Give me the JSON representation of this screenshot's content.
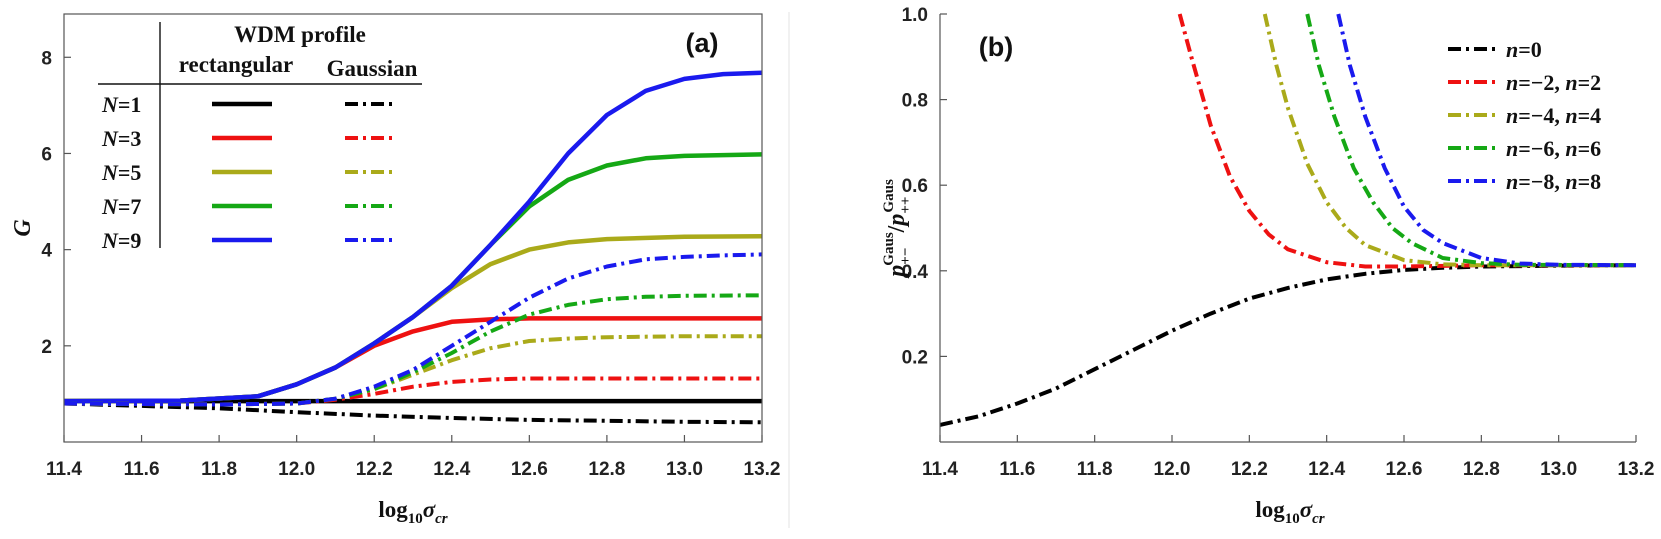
{
  "chart_data": [
    {
      "id": "a",
      "type": "line",
      "panel_label": "(a)",
      "title": "",
      "xlabel_main": "log",
      "xlabel_sub": "10",
      "xlabel_sym": "σ",
      "xlabel_sym_sub": "cr",
      "ylabel": "G",
      "xlim": [
        11.4,
        13.2
      ],
      "ylim": [
        0.0,
        8.9
      ],
      "xticks": [
        11.4,
        11.6,
        11.8,
        12.0,
        12.2,
        12.4,
        12.6,
        12.8,
        13.0,
        13.2
      ],
      "xtick_labels": [
        "11.4",
        "11.6",
        "11.8",
        "12.0",
        "12.2",
        "12.4",
        "12.6",
        "12.8",
        "13.0",
        "13.2"
      ],
      "yticks": [
        2,
        4,
        6,
        8
      ],
      "ytick_labels": [
        "2",
        "4",
        "6",
        "8"
      ],
      "legend": {
        "header": "WDM profile",
        "col1": "rectangular",
        "col2": "Gaussian",
        "rows": [
          {
            "N": "1",
            "color": "#000000"
          },
          {
            "N": "3",
            "color": "#ee1111"
          },
          {
            "N": "5",
            "color": "#aaaa1a"
          },
          {
            "N": "7",
            "color": "#15a815"
          },
          {
            "N": "9",
            "color": "#1a1aee"
          }
        ]
      },
      "series": [
        {
          "name": "N=1 rectangular",
          "color": "#000000",
          "dash": "solid",
          "x": [
            11.4,
            13.2
          ],
          "y": [
            0.85,
            0.85
          ]
        },
        {
          "name": "N=3 rectangular",
          "color": "#ee1111",
          "dash": "solid",
          "x": [
            11.4,
            11.7,
            11.9,
            12.0,
            12.1,
            12.2,
            12.3,
            12.4,
            12.5,
            12.6,
            12.7,
            13.2
          ],
          "y": [
            0.85,
            0.86,
            0.95,
            1.2,
            1.55,
            2.0,
            2.3,
            2.5,
            2.55,
            2.57,
            2.57,
            2.57
          ]
        },
        {
          "name": "N=5 rectangular",
          "color": "#aaaa1a",
          "dash": "solid",
          "x": [
            11.4,
            11.7,
            11.9,
            12.0,
            12.1,
            12.2,
            12.3,
            12.4,
            12.5,
            12.6,
            12.7,
            12.8,
            13.0,
            13.2
          ],
          "y": [
            0.85,
            0.86,
            0.95,
            1.2,
            1.55,
            2.05,
            2.6,
            3.2,
            3.7,
            4.0,
            4.15,
            4.22,
            4.27,
            4.28
          ]
        },
        {
          "name": "N=7 rectangular",
          "color": "#15a815",
          "dash": "solid",
          "x": [
            11.4,
            11.7,
            11.9,
            12.0,
            12.1,
            12.2,
            12.3,
            12.4,
            12.5,
            12.6,
            12.7,
            12.8,
            12.9,
            13.0,
            13.2
          ],
          "y": [
            0.85,
            0.86,
            0.95,
            1.2,
            1.55,
            2.05,
            2.6,
            3.25,
            4.1,
            4.9,
            5.45,
            5.75,
            5.9,
            5.95,
            5.98
          ]
        },
        {
          "name": "N=9 rectangular",
          "color": "#1a1aee",
          "dash": "solid",
          "x": [
            11.4,
            11.7,
            11.9,
            12.0,
            12.1,
            12.2,
            12.3,
            12.4,
            12.5,
            12.6,
            12.7,
            12.8,
            12.9,
            13.0,
            13.1,
            13.2
          ],
          "y": [
            0.85,
            0.86,
            0.95,
            1.2,
            1.55,
            2.05,
            2.6,
            3.25,
            4.1,
            5.0,
            6.0,
            6.8,
            7.3,
            7.55,
            7.65,
            7.68
          ]
        },
        {
          "name": "N=1 Gaussian",
          "color": "#000000",
          "dash": "dashdot",
          "x": [
            11.4,
            11.8,
            12.0,
            12.2,
            12.4,
            12.6,
            12.8,
            13.0,
            13.2
          ],
          "y": [
            0.8,
            0.7,
            0.62,
            0.55,
            0.5,
            0.46,
            0.44,
            0.42,
            0.41
          ]
        },
        {
          "name": "N=3 Gaussian",
          "color": "#ee1111",
          "dash": "dashdot",
          "x": [
            11.4,
            11.8,
            12.0,
            12.1,
            12.2,
            12.3,
            12.4,
            12.5,
            12.6,
            12.8,
            13.2
          ],
          "y": [
            0.8,
            0.78,
            0.8,
            0.88,
            1.0,
            1.15,
            1.25,
            1.3,
            1.32,
            1.32,
            1.32
          ]
        },
        {
          "name": "N=5 Gaussian",
          "color": "#aaaa1a",
          "dash": "dashdot",
          "x": [
            11.4,
            11.8,
            12.0,
            12.1,
            12.2,
            12.3,
            12.4,
            12.5,
            12.6,
            12.7,
            12.8,
            13.0,
            13.2
          ],
          "y": [
            0.8,
            0.78,
            0.8,
            0.9,
            1.1,
            1.4,
            1.7,
            1.95,
            2.1,
            2.15,
            2.18,
            2.2,
            2.2
          ]
        },
        {
          "name": "N=7 Gaussian",
          "color": "#15a815",
          "dash": "dashdot",
          "x": [
            11.4,
            11.8,
            12.0,
            12.1,
            12.2,
            12.3,
            12.4,
            12.5,
            12.6,
            12.7,
            12.8,
            12.9,
            13.0,
            13.2
          ],
          "y": [
            0.8,
            0.78,
            0.8,
            0.9,
            1.1,
            1.45,
            1.85,
            2.3,
            2.65,
            2.85,
            2.97,
            3.02,
            3.04,
            3.05
          ]
        },
        {
          "name": "N=9 Gaussian",
          "color": "#1a1aee",
          "dash": "dashdot",
          "x": [
            11.4,
            11.8,
            12.0,
            12.1,
            12.2,
            12.3,
            12.4,
            12.5,
            12.6,
            12.7,
            12.8,
            12.9,
            13.0,
            13.1,
            13.2
          ],
          "y": [
            0.8,
            0.78,
            0.8,
            0.9,
            1.15,
            1.5,
            2.0,
            2.5,
            3.0,
            3.4,
            3.65,
            3.8,
            3.85,
            3.88,
            3.9
          ]
        }
      ]
    },
    {
      "id": "b",
      "type": "line",
      "panel_label": "(b)",
      "title": "",
      "xlabel_main": "log",
      "xlabel_sub": "10",
      "xlabel_sym": "σ",
      "xlabel_sym_sub": "cr",
      "ylabel_num": "p",
      "ylabel_num_sub": "+−",
      "ylabel_sup": "Gaus",
      "ylabel_slash": "/",
      "ylabel_den": "p",
      "ylabel_den_sub": "++",
      "xlim": [
        11.4,
        13.2
      ],
      "ylim": [
        0.0,
        1.0
      ],
      "xticks": [
        11.4,
        11.6,
        11.8,
        12.0,
        12.2,
        12.4,
        12.6,
        12.8,
        13.0,
        13.2
      ],
      "xtick_labels": [
        "11.4",
        "11.6",
        "11.8",
        "12.0",
        "12.2",
        "12.4",
        "12.6",
        "12.8",
        "13.0",
        "13.2"
      ],
      "yticks": [
        0.2,
        0.4,
        0.6,
        0.8,
        1.0
      ],
      "ytick_labels": [
        "0.2",
        "0.4",
        "0.6",
        "0.8",
        "1.0"
      ],
      "legend": {
        "entries": [
          {
            "a": "n",
            "b": "=0",
            "c": "",
            "d": "",
            "color": "#000000"
          },
          {
            "a": "n",
            "b": "=−2, ",
            "c": "n",
            "d": "=2",
            "color": "#ee1111"
          },
          {
            "a": "n",
            "b": "=−4, ",
            "c": "n",
            "d": "=4",
            "color": "#aaaa1a"
          },
          {
            "a": "n",
            "b": "=−6, ",
            "c": "n",
            "d": "=6",
            "color": "#15a815"
          },
          {
            "a": "n",
            "b": "=−8, ",
            "c": "n",
            "d": "=8",
            "color": "#1a1aee"
          }
        ]
      },
      "series": [
        {
          "name": "n=0",
          "color": "#000000",
          "dash": "dashdot",
          "x": [
            11.4,
            11.5,
            11.6,
            11.7,
            11.8,
            11.9,
            12.0,
            12.1,
            12.2,
            12.3,
            12.4,
            12.5,
            12.6,
            12.7,
            12.8,
            13.0,
            13.2
          ],
          "y": [
            0.04,
            0.06,
            0.09,
            0.125,
            0.17,
            0.215,
            0.26,
            0.3,
            0.335,
            0.36,
            0.38,
            0.393,
            0.402,
            0.407,
            0.41,
            0.412,
            0.413
          ]
        },
        {
          "name": "n=-2, n=2",
          "color": "#ee1111",
          "dash": "dashdot",
          "x": [
            12.02,
            12.05,
            12.1,
            12.15,
            12.2,
            12.25,
            12.3,
            12.4,
            12.5,
            12.6,
            12.8,
            13.2
          ],
          "y": [
            1.0,
            0.9,
            0.74,
            0.62,
            0.54,
            0.485,
            0.45,
            0.42,
            0.41,
            0.41,
            0.413,
            0.413
          ]
        },
        {
          "name": "n=-4, n=4",
          "color": "#aaaa1a",
          "dash": "dashdot",
          "x": [
            12.24,
            12.27,
            12.3,
            12.35,
            12.4,
            12.45,
            12.5,
            12.6,
            12.7,
            12.8,
            13.2
          ],
          "y": [
            1.0,
            0.88,
            0.78,
            0.65,
            0.56,
            0.5,
            0.46,
            0.425,
            0.415,
            0.413,
            0.413
          ]
        },
        {
          "name": "n=-6, n=6",
          "color": "#15a815",
          "dash": "dashdot",
          "x": [
            12.35,
            12.38,
            12.42,
            12.47,
            12.52,
            12.57,
            12.62,
            12.7,
            12.8,
            12.9,
            13.2
          ],
          "y": [
            1.0,
            0.88,
            0.76,
            0.64,
            0.56,
            0.5,
            0.465,
            0.43,
            0.418,
            0.414,
            0.413
          ]
        },
        {
          "name": "n=-8, n=8",
          "color": "#1a1aee",
          "dash": "dashdot",
          "x": [
            12.43,
            12.46,
            12.5,
            12.55,
            12.6,
            12.65,
            12.7,
            12.8,
            12.9,
            13.0,
            13.2
          ],
          "y": [
            1.0,
            0.88,
            0.76,
            0.64,
            0.55,
            0.495,
            0.465,
            0.43,
            0.417,
            0.414,
            0.413
          ]
        }
      ]
    }
  ]
}
